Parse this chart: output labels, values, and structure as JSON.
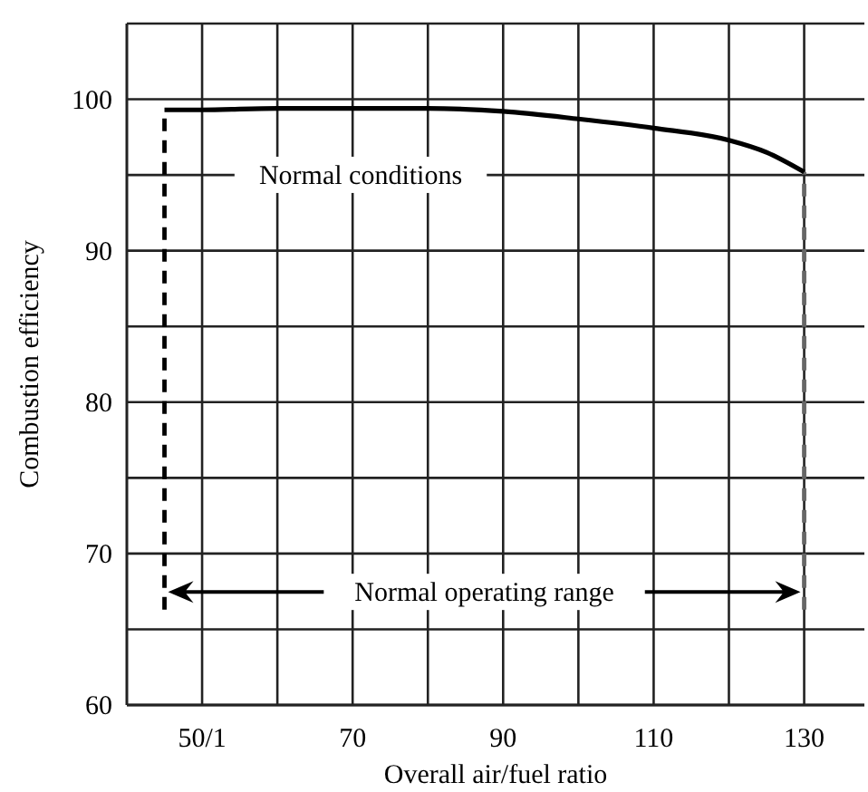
{
  "chart_data": {
    "type": "line",
    "xlabel": "Overall air/fuel ratio",
    "ylabel": "Combustion efficiency",
    "xlim": [
      40,
      138
    ],
    "ylim": [
      60,
      105
    ],
    "xticks": [
      {
        "value": 50,
        "label": "50/1"
      },
      {
        "value": 60,
        "label": null
      },
      70,
      {
        "value": 80,
        "label": null
      },
      90,
      {
        "value": 100,
        "label": null
      },
      110,
      {
        "value": 120,
        "label": null
      },
      130
    ],
    "yticks": [
      60,
      {
        "value": 65,
        "label": null
      },
      70,
      {
        "value": 75,
        "label": null
      },
      80,
      {
        "value": 85,
        "label": null
      },
      90,
      {
        "value": 95,
        "label": null
      },
      100
    ],
    "grid": true,
    "marker": "none",
    "line_style": "solid",
    "series": [
      {
        "color": "#000000",
        "x": [
          45,
          50,
          60,
          70,
          80,
          90,
          100,
          110,
          120,
          125,
          130
        ],
        "values": [
          99.3,
          99.3,
          99.4,
          99.4,
          99.4,
          99.2,
          98.7,
          98.1,
          97.3,
          96.5,
          95.2
        ]
      }
    ],
    "ref_lines": [
      {
        "axis": "x",
        "value": 45,
        "color": "#000000",
        "line_style": "dashed"
      },
      {
        "axis": "x",
        "value": 130,
        "color": "#666666",
        "line_style": "dashed"
      }
    ],
    "annotations": [
      "Normal conditions",
      "Normal operating range"
    ]
  }
}
